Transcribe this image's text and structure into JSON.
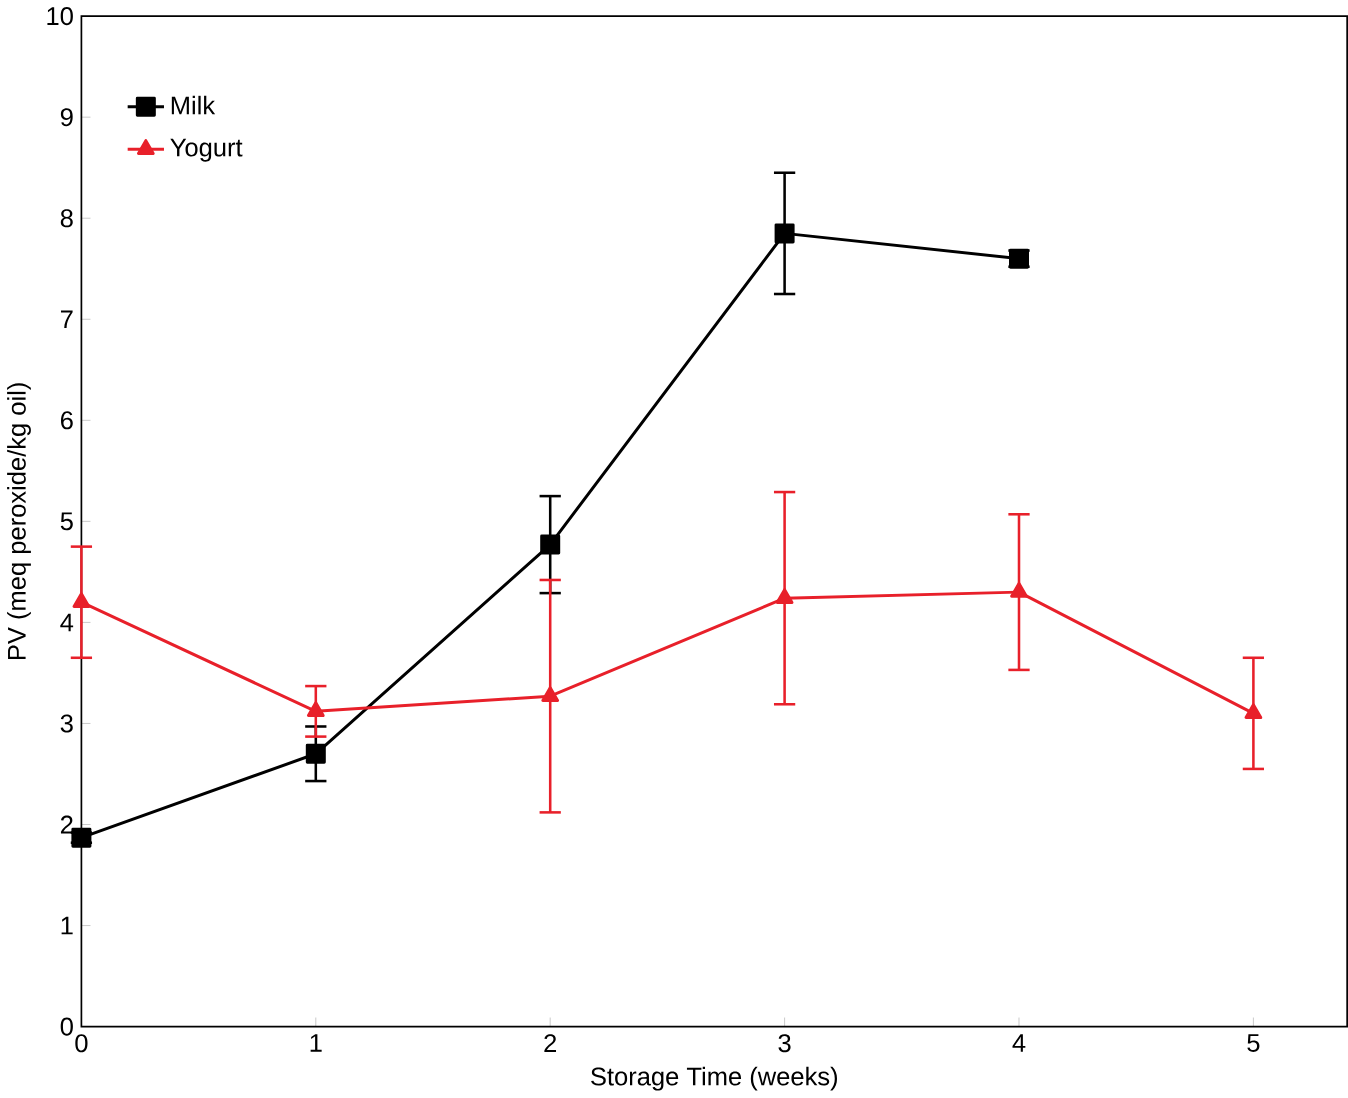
{
  "chart_data": {
    "type": "line",
    "xlabel": "Storage Time (weeks)",
    "ylabel": "PV (meq peroxide/kg oil)",
    "x": [
      0,
      1,
      2,
      3,
      4,
      5
    ],
    "xlim": [
      0,
      5.4
    ],
    "xticks": [
      0,
      1,
      2,
      3,
      4,
      5
    ],
    "ylim": [
      0,
      10
    ],
    "yticks": [
      0,
      1,
      2,
      3,
      4,
      5,
      6,
      7,
      8,
      9,
      10
    ],
    "grid": false,
    "legend": "top left",
    "line_style": "solid",
    "series": [
      {
        "name": "Milk",
        "color": "#000000",
        "marker": "square",
        "values": [
          1.87,
          2.7,
          4.77,
          7.85,
          7.6,
          null
        ],
        "errors": [
          0.05,
          0.27,
          0.48,
          0.6,
          0.08,
          null
        ]
      },
      {
        "name": "Yogurt",
        "color": "#e8202a",
        "marker": "triangle",
        "values": [
          4.2,
          3.12,
          3.27,
          4.24,
          4.3,
          3.1
        ],
        "errors": [
          0.55,
          0.25,
          1.15,
          1.05,
          0.77,
          0.55
        ]
      }
    ]
  }
}
